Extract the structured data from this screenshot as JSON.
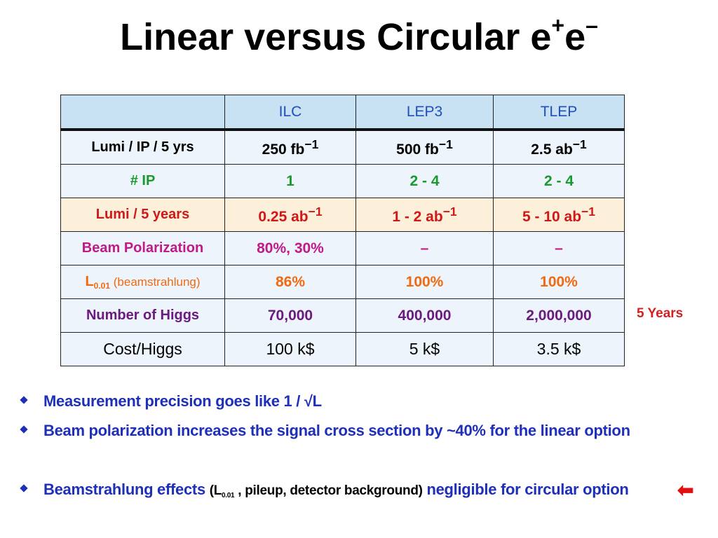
{
  "slide": {
    "title_main": "Linear  versus  Circular e",
    "title_sup1": "+",
    "title_e2": "e",
    "title_sup2": "–"
  },
  "table": {
    "headers": [
      "",
      "ILC",
      "LEP3",
      "TLEP"
    ],
    "rows": {
      "lumi_ip": {
        "label": "Lumi / IP / 5 yrs",
        "v1": "250 fb",
        "v2": "500 fb",
        "v3": "2.5 ab",
        "sup": "−1",
        "label_color": "#000000",
        "value_color": "#000000"
      },
      "num_ip": {
        "label": "# IP",
        "v1": "1",
        "v2": "2 - 4",
        "v3": "2 - 4",
        "label_color": "#1a9a2e",
        "value_color": "#1a9a2e"
      },
      "lumi_5y": {
        "label": "Lumi / 5 years",
        "v1": "0.25 ab",
        "v2": "1 - 2 ab",
        "v3": "5 - 10 ab",
        "sup": "−1",
        "label_color": "#d01818",
        "value_color": "#d01818"
      },
      "beam_pol": {
        "label": "Beam Polarization",
        "v1": "80%, 30%",
        "v2": "–",
        "v3": "–",
        "label_color": "#c0198a",
        "value_color": "#c0198a"
      },
      "l001": {
        "label_main": "L",
        "label_sub": "0.01",
        "label_rest": " (beamstrahlung)",
        "v1": "86%",
        "v2": "100%",
        "v3": "100%",
        "label_color": "#f06a10",
        "value_color": "#f06a10"
      },
      "higgs": {
        "label": "Number of Higgs",
        "v1": "70,000",
        "v2": "400,000",
        "v3": "2,000,000",
        "label_color": "#6a1a80",
        "value_color": "#6a1a80"
      },
      "cost": {
        "label": "Cost/Higgs",
        "v1": "100 k$",
        "v2": "5 k$",
        "v3": "3.5 k$",
        "label_color": "#000000",
        "value_color": "#000000"
      }
    }
  },
  "side_note": "5 Years",
  "bullets": {
    "b1": "Measurement precision goes like 1 / √L",
    "b2": "Beam polarization increases the signal cross section by ~40% for the linear option",
    "b3_start": "Beamstrahlung effects ",
    "b3_paren_open": "(L",
    "b3_paren_sub": "0.01",
    "b3_paren_rest": " , pileup, detector background)",
    "b3_end": " negligible for circular option"
  },
  "icons": {
    "arrow": "left-arrow-icon",
    "bullet": "diamond-bullet-icon"
  },
  "arrow_glyph": "⬅",
  "colors": {
    "header_bg": "#c8e2f3",
    "header_text": "#1f4fbd",
    "row_bg": "#eef4fb",
    "highlight_row_bg": "#fdf0da",
    "bullet_text": "#1e2fb8",
    "note_red": "#d42020"
  }
}
